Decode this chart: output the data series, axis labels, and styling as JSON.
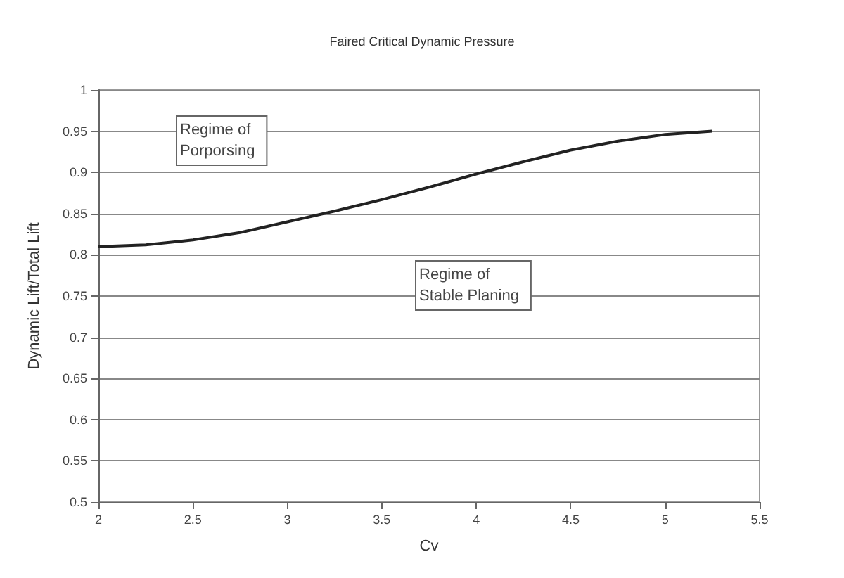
{
  "chart_data": {
    "type": "line",
    "title": "Faired Critical Dynamic Pressure",
    "xlabel": "Cv",
    "ylabel": "Dynamic Lift/Total Lift",
    "x": [
      2,
      2.25,
      2.5,
      2.75,
      3,
      3.25,
      3.5,
      3.75,
      4,
      4.25,
      4.5,
      4.75,
      5,
      5.25
    ],
    "series": [
      {
        "color": "#222222",
        "values": [
          0.81,
          0.812,
          0.818,
          0.827,
          0.84,
          0.853,
          0.867,
          0.882,
          0.898,
          0.913,
          0.927,
          0.938,
          0.946,
          0.95
        ]
      }
    ],
    "xlim": [
      2,
      5.5
    ],
    "xticks": [
      2,
      2.5,
      3,
      3.5,
      4,
      4.5,
      5,
      5.5
    ],
    "ylim": [
      0.5,
      1
    ],
    "yticks": [
      0.5,
      0.55,
      0.6,
      0.65,
      0.7,
      0.75,
      0.8,
      0.85,
      0.9,
      0.95,
      1
    ],
    "grid": "y",
    "marker": "none",
    "line_style": "solid",
    "annotations": [
      "Regime of\nPorporsing",
      "Regime of\nStable Planing"
    ]
  }
}
